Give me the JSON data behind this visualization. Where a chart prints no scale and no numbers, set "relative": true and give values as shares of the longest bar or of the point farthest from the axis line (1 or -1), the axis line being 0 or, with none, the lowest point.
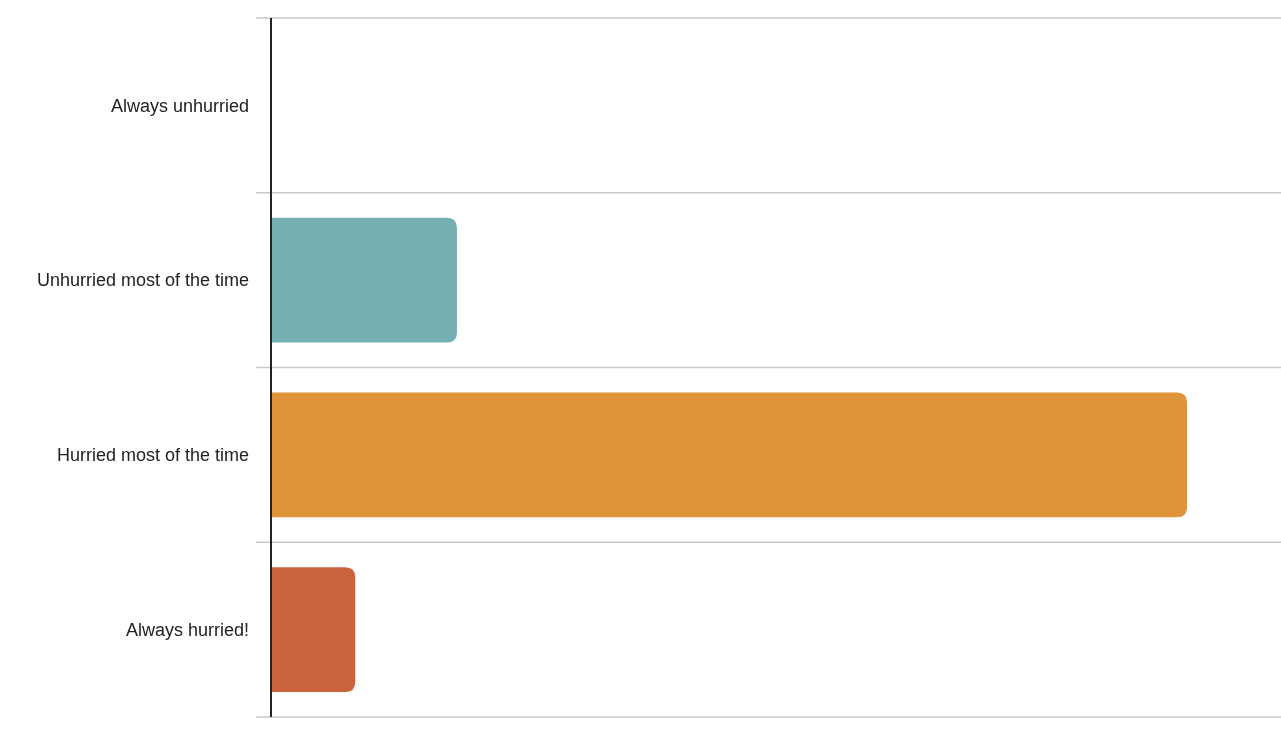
{
  "chart_data": {
    "type": "bar",
    "orientation": "horizontal",
    "relative": true,
    "grid": "y",
    "categories": [
      "Always unhurried",
      "Unhurried most of the time",
      "Hurried most of the time",
      "Always hurried!"
    ],
    "values": [
      0,
      0.203,
      1,
      0.092
    ],
    "colors": [
      "#74afb2",
      "#74afb2",
      "#df9439",
      "#cb623e"
    ]
  }
}
